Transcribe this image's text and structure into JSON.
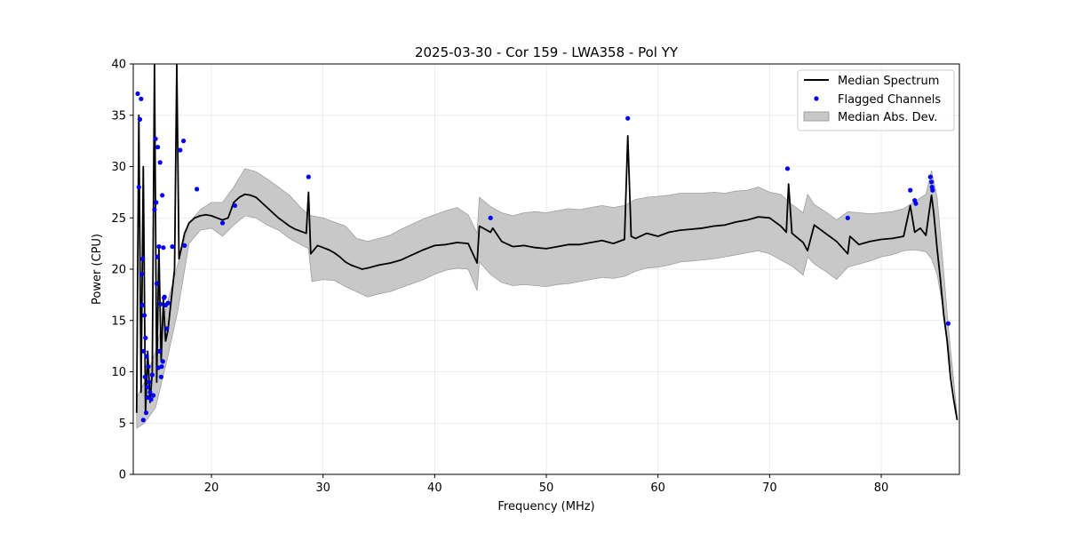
{
  "chart_data": {
    "type": "line",
    "title": "2025-03-30 - Cor 159 - LWA358 - Pol YY",
    "xlabel": "Frequency (MHz)",
    "ylabel": "Power (CPU)",
    "xlim": [
      13.0,
      87.0
    ],
    "ylim": [
      0,
      40
    ],
    "xticks": [
      20,
      30,
      40,
      50,
      60,
      70,
      80
    ],
    "yticks": [
      0,
      5,
      10,
      15,
      20,
      25,
      30,
      35,
      40
    ],
    "grid": true,
    "legend_position": "top-right",
    "series": [
      {
        "name": "Median Spectrum",
        "kind": "line",
        "color": "#000000",
        "x": [
          13.3,
          13.5,
          13.7,
          13.9,
          14.1,
          14.3,
          14.5,
          14.7,
          14.9,
          15.1,
          15.3,
          15.5,
          15.7,
          15.9,
          16.1,
          16.3,
          16.5,
          16.7,
          16.9,
          17.1,
          17.3,
          17.6,
          18.0,
          18.5,
          19.0,
          19.5,
          20.0,
          20.5,
          21.0,
          21.5,
          22.0,
          22.5,
          23.0,
          23.5,
          24.0,
          24.5,
          25.0,
          25.5,
          26.0,
          26.5,
          27.0,
          27.5,
          28.0,
          28.5,
          28.7,
          28.9,
          29.5,
          30.0,
          30.5,
          31.0,
          31.5,
          32.0,
          32.5,
          33.0,
          33.5,
          34.0,
          35.0,
          36.0,
          37.0,
          38.0,
          39.0,
          40.0,
          41.0,
          42.0,
          43.0,
          43.8,
          44.0,
          45.0,
          45.2,
          46.0,
          47.0,
          48.0,
          49.0,
          50.0,
          51.0,
          52.0,
          53.0,
          54.0,
          55.0,
          56.0,
          57.0,
          57.3,
          57.6,
          58.0,
          59.0,
          60.0,
          61.0,
          62.0,
          63.0,
          64.0,
          65.0,
          66.0,
          67.0,
          68.0,
          69.0,
          70.0,
          71.0,
          71.5,
          71.7,
          72.0,
          73.0,
          73.4,
          74.0,
          75.0,
          76.0,
          77.0,
          77.2,
          78.0,
          79.0,
          80.0,
          81.0,
          82.0,
          82.6,
          83.0,
          83.5,
          84.0,
          84.5,
          84.7,
          85.0,
          85.3,
          85.6,
          85.9,
          86.2,
          86.5,
          86.8
        ],
        "y": [
          6.0,
          35.0,
          8.0,
          30.0,
          6.0,
          12.0,
          7.0,
          10.0,
          40.0,
          9.0,
          22.0,
          11.0,
          17.0,
          13.0,
          14.0,
          16.0,
          18.0,
          20.0,
          40.0,
          21.0,
          22.0,
          23.5,
          24.5,
          25.0,
          25.2,
          25.3,
          25.2,
          25.0,
          24.8,
          25.0,
          26.5,
          27.0,
          27.3,
          27.2,
          27.0,
          26.5,
          26.0,
          25.5,
          25.0,
          24.6,
          24.2,
          23.9,
          23.7,
          23.5,
          27.5,
          21.5,
          22.3,
          22.1,
          21.9,
          21.6,
          21.2,
          20.7,
          20.4,
          20.2,
          20.0,
          20.1,
          20.4,
          20.6,
          20.9,
          21.4,
          21.9,
          22.3,
          22.4,
          22.6,
          22.5,
          20.6,
          24.2,
          23.6,
          24.0,
          22.7,
          22.2,
          22.3,
          22.1,
          22.0,
          22.2,
          22.4,
          22.4,
          22.6,
          22.8,
          22.5,
          22.9,
          33.0,
          23.2,
          23.0,
          23.5,
          23.2,
          23.6,
          23.8,
          23.9,
          24.0,
          24.2,
          24.3,
          24.6,
          24.8,
          25.1,
          25.0,
          24.2,
          23.6,
          28.3,
          23.5,
          22.6,
          21.8,
          24.3,
          23.5,
          22.7,
          21.5,
          23.2,
          22.4,
          22.7,
          22.9,
          23.0,
          23.2,
          26.2,
          23.6,
          24.0,
          23.3,
          27.2,
          25.5,
          22.0,
          19.0,
          15.5,
          13.0,
          9.5,
          7.2,
          5.3
        ]
      },
      {
        "name": "Flagged Channels",
        "kind": "scatter",
        "color": "#0000ff",
        "x": [
          13.4,
          13.5,
          13.6,
          13.7,
          13.75,
          13.8,
          13.85,
          13.9,
          13.95,
          14.0,
          14.05,
          14.1,
          14.15,
          14.2,
          14.25,
          14.3,
          14.35,
          14.4,
          14.5,
          14.6,
          14.7,
          14.8,
          14.9,
          15.0,
          15.05,
          15.1,
          15.15,
          15.2,
          15.25,
          15.3,
          15.35,
          15.4,
          15.45,
          15.5,
          15.55,
          15.6,
          15.65,
          15.7,
          15.75,
          15.8,
          15.9,
          16.0,
          16.1,
          16.5,
          17.2,
          17.5,
          17.6,
          18.7,
          21.0,
          22.1,
          28.7,
          45.0,
          57.3,
          71.6,
          77.0,
          82.6,
          83.0,
          83.1,
          84.4,
          84.5,
          84.55,
          84.6,
          86.0
        ],
        "y": [
          37.1,
          28.0,
          34.6,
          36.6,
          19.5,
          16.5,
          21.0,
          5.3,
          12.0,
          15.5,
          9.5,
          13.3,
          6.0,
          11.5,
          8.5,
          7.5,
          10.5,
          9.0,
          8.0,
          7.3,
          9.7,
          7.7,
          25.8,
          32.7,
          26.5,
          18.6,
          21.2,
          31.9,
          10.4,
          22.2,
          12.0,
          30.4,
          16.6,
          9.5,
          10.5,
          27.2,
          11.0,
          22.1,
          17.2,
          17.3,
          16.5,
          14.2,
          16.7,
          22.2,
          31.6,
          32.5,
          22.3,
          27.8,
          24.5,
          26.2,
          29.0,
          25.0,
          34.7,
          29.8,
          25.0,
          27.7,
          26.7,
          26.4,
          29.0,
          28.5,
          28.0,
          27.7,
          14.7
        ]
      },
      {
        "name": "Median Abs. Dev.",
        "kind": "band",
        "color": "#c8c8c8",
        "x": [
          13.3,
          14.0,
          15.0,
          16.0,
          17.0,
          18.0,
          19.0,
          20.0,
          21.0,
          22.0,
          23.0,
          24.0,
          25.0,
          26.0,
          27.0,
          28.0,
          28.7,
          29.0,
          30.0,
          31.0,
          32.0,
          33.0,
          34.0,
          35.0,
          36.0,
          37.0,
          38.0,
          39.0,
          40.0,
          41.0,
          42.0,
          43.0,
          43.8,
          44.0,
          45.0,
          46.0,
          47.0,
          48.0,
          49.0,
          50.0,
          51.0,
          52.0,
          53.0,
          54.0,
          55.0,
          56.0,
          57.0,
          58.0,
          59.0,
          60.0,
          61.0,
          62.0,
          63.0,
          64.0,
          65.0,
          66.0,
          67.0,
          68.0,
          69.0,
          70.0,
          71.0,
          72.0,
          73.0,
          73.4,
          74.0,
          75.0,
          76.0,
          77.0,
          78.0,
          79.0,
          80.0,
          81.0,
          82.0,
          83.0,
          84.0,
          84.5,
          85.0,
          85.5,
          86.0,
          86.5,
          86.8
        ],
        "lower": [
          4.5,
          5.0,
          6.5,
          11.0,
          16.0,
          22.5,
          23.8,
          24.0,
          23.2,
          24.3,
          25.2,
          25.0,
          24.3,
          23.8,
          23.0,
          22.4,
          22.0,
          18.8,
          19.0,
          18.9,
          18.3,
          17.8,
          17.3,
          17.6,
          17.8,
          18.2,
          18.6,
          19.0,
          19.5,
          19.9,
          20.1,
          20.0,
          17.9,
          20.7,
          19.5,
          18.7,
          18.4,
          18.5,
          18.4,
          18.3,
          18.5,
          18.6,
          18.8,
          19.0,
          19.2,
          19.1,
          19.3,
          19.8,
          20.1,
          20.2,
          20.4,
          20.7,
          20.8,
          20.9,
          21.0,
          21.2,
          21.4,
          21.6,
          21.8,
          21.5,
          20.9,
          20.3,
          19.4,
          21.2,
          20.5,
          19.8,
          19.0,
          20.2,
          20.5,
          20.8,
          21.2,
          21.4,
          21.8,
          21.9,
          21.7,
          21.0,
          19.5,
          16.5,
          12.5,
          8.5,
          5.5
        ],
        "upper": [
          7.5,
          9.0,
          12.0,
          16.5,
          20.5,
          24.5,
          25.8,
          26.5,
          26.5,
          28.0,
          29.8,
          29.5,
          28.8,
          28.0,
          27.2,
          26.0,
          25.3,
          25.2,
          25.0,
          24.6,
          24.2,
          23.0,
          22.7,
          23.0,
          23.3,
          23.9,
          24.4,
          24.9,
          25.3,
          25.7,
          26.0,
          25.3,
          23.5,
          27.0,
          26.1,
          25.5,
          25.2,
          25.5,
          25.6,
          25.5,
          25.7,
          25.9,
          25.8,
          26.0,
          26.2,
          26.0,
          26.2,
          26.8,
          27.0,
          27.1,
          27.2,
          27.4,
          27.4,
          27.4,
          27.5,
          27.4,
          27.6,
          27.7,
          28.0,
          27.5,
          27.3,
          26.3,
          25.5,
          27.3,
          26.3,
          25.6,
          24.8,
          25.6,
          25.5,
          25.4,
          25.5,
          25.6,
          25.9,
          26.6,
          27.3,
          29.6,
          27.0,
          21.0,
          14.5,
          9.0,
          5.7
        ]
      }
    ]
  }
}
